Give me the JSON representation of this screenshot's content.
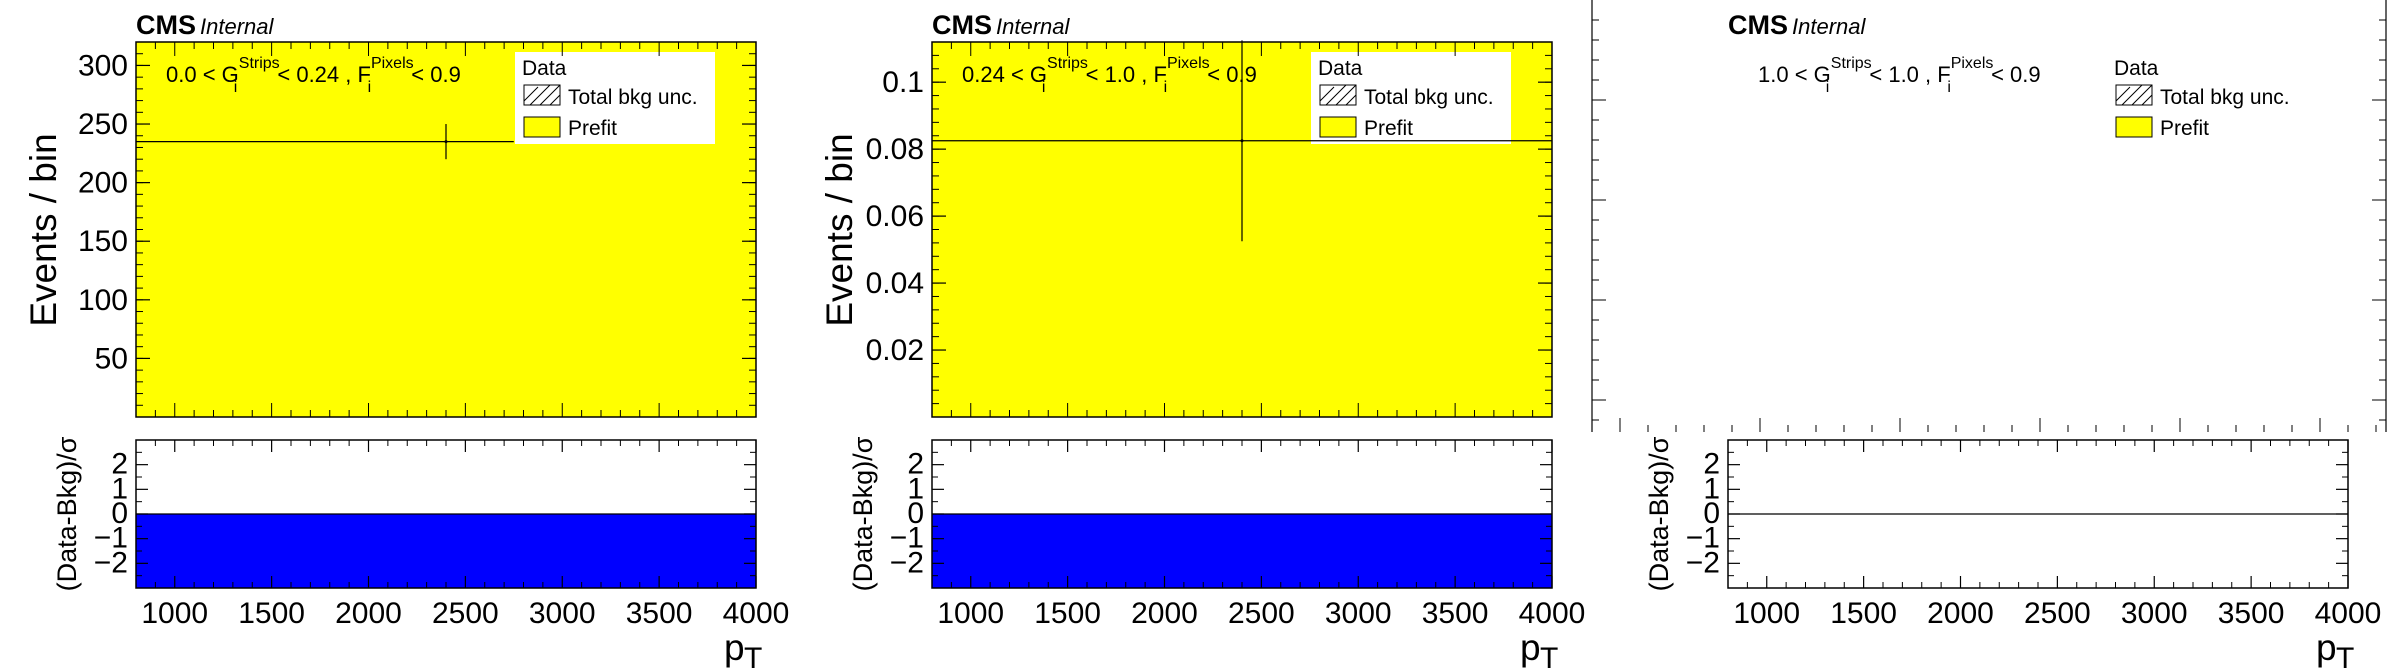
{
  "colors": {
    "prefit_fill": "#ffff00",
    "pull_fill": "#0000ff",
    "frame": "#000000",
    "background": "#ffffff"
  },
  "x_axis": {
    "title_main": "p",
    "title_sub": "T",
    "range": [
      800,
      4000
    ],
    "ticks": [
      1000,
      1500,
      2000,
      2500,
      3000,
      3500,
      4000
    ],
    "tick_labels": [
      "1000",
      "1500",
      "2000",
      "2500",
      "3000",
      "3500",
      "4000"
    ]
  },
  "cms_label": "CMS",
  "cms_sublabel": "Internal",
  "legend": {
    "data": "Data",
    "bkg_unc": "Total bkg unc.",
    "prefit": "Prefit"
  },
  "y_title": "Events / bin",
  "ratio_y_title": "(Data-Bkg)/σ",
  "chart_data": [
    {
      "type": "bar",
      "name": "panel-1",
      "region": {
        "g_low": "0.0",
        "g_high": "0.24",
        "f_high": "0.9"
      },
      "ylim": [
        0,
        320
      ],
      "yticks": [
        50,
        100,
        150,
        200,
        250,
        300
      ],
      "ytick_labels": [
        "50",
        "100",
        "150",
        "200",
        "250",
        "300"
      ],
      "prefit": {
        "x": [
          800,
          4000
        ],
        "y": 320
      },
      "data_point": {
        "x": 2400,
        "y": 235,
        "yerr": 15
      },
      "data_line": {
        "x": [
          800,
          2750
        ],
        "y": 235
      },
      "ratio": {
        "ylim": [
          -3,
          3
        ],
        "yticks": [
          -2,
          -1,
          0,
          1,
          2
        ],
        "ytick_labels": [
          "−2",
          "−1",
          "0",
          "1",
          "2"
        ],
        "fill_from": 0,
        "fill_to": -3
      }
    },
    {
      "type": "bar",
      "name": "panel-2",
      "region": {
        "g_low": "0.24",
        "g_high": "1.0",
        "f_high": "0.9"
      },
      "ylim": [
        0,
        0.112
      ],
      "yticks": [
        0.02,
        0.04,
        0.06,
        0.08,
        0.1
      ],
      "ytick_labels": [
        "0.02",
        "0.04",
        "0.06",
        "0.08",
        "0.1"
      ],
      "prefit": {
        "x": [
          800,
          4000
        ],
        "y": 0.112
      },
      "data_point": {
        "x": 2400,
        "y": 0.0825,
        "yerr": 0.03
      },
      "data_line": {
        "x": [
          800,
          4000
        ],
        "y": 0.0825
      },
      "ratio": {
        "ylim": [
          -3,
          3
        ],
        "yticks": [
          -2,
          -1,
          0,
          1,
          2
        ],
        "ytick_labels": [
          "−2",
          "−1",
          "0",
          "1",
          "2"
        ],
        "fill_from": 0,
        "fill_to": -3
      }
    },
    {
      "type": "bar",
      "name": "panel-3",
      "region": {
        "g_low": "1.0",
        "g_high": "1.0",
        "f_high": "0.9"
      },
      "ylim": null,
      "yticks": [],
      "ytick_labels": [],
      "prefit": null,
      "data_point": null,
      "data_line": null,
      "ratio": {
        "ylim": [
          -3,
          3
        ],
        "yticks": [
          -2,
          -1,
          0,
          1,
          2
        ],
        "ytick_labels": [
          "−2",
          "−1",
          "0",
          "1",
          "2"
        ],
        "fill_from": null,
        "fill_to": null
      }
    }
  ]
}
